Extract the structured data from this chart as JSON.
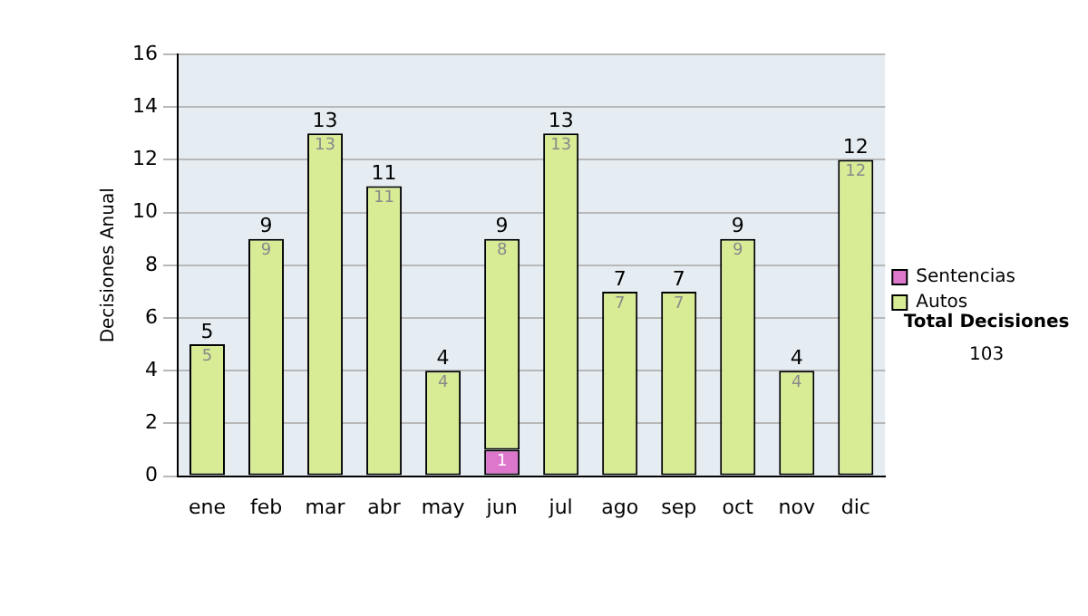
{
  "chart_data": {
    "type": "bar",
    "stacked": true,
    "ylabel": "Decisiones Anual",
    "categories": [
      "ene",
      "feb",
      "mar",
      "abr",
      "may",
      "jun",
      "jul",
      "ago",
      "sep",
      "oct",
      "nov",
      "dic"
    ],
    "series": [
      {
        "name": "Sentencias",
        "color": "#dd77cc",
        "values": [
          null,
          null,
          null,
          null,
          null,
          1,
          null,
          null,
          null,
          null,
          null,
          null
        ]
      },
      {
        "name": "Autos",
        "color": "#d8ec96",
        "values": [
          5,
          9,
          13,
          11,
          4,
          8,
          13,
          7,
          7,
          9,
          4,
          12
        ]
      }
    ],
    "totals": [
      "5",
      "9",
      "13",
      "11",
      "4",
      "9",
      "13",
      "7",
      "7",
      "9",
      "4",
      "12"
    ],
    "data_labels": true,
    "ylim": [
      0,
      16
    ],
    "yticks": [
      0,
      2,
      4,
      6,
      8,
      10,
      12,
      14,
      16
    ],
    "grid": "y",
    "legend": "right",
    "annotations": [
      "Total Decisiones",
      "103"
    ]
  }
}
